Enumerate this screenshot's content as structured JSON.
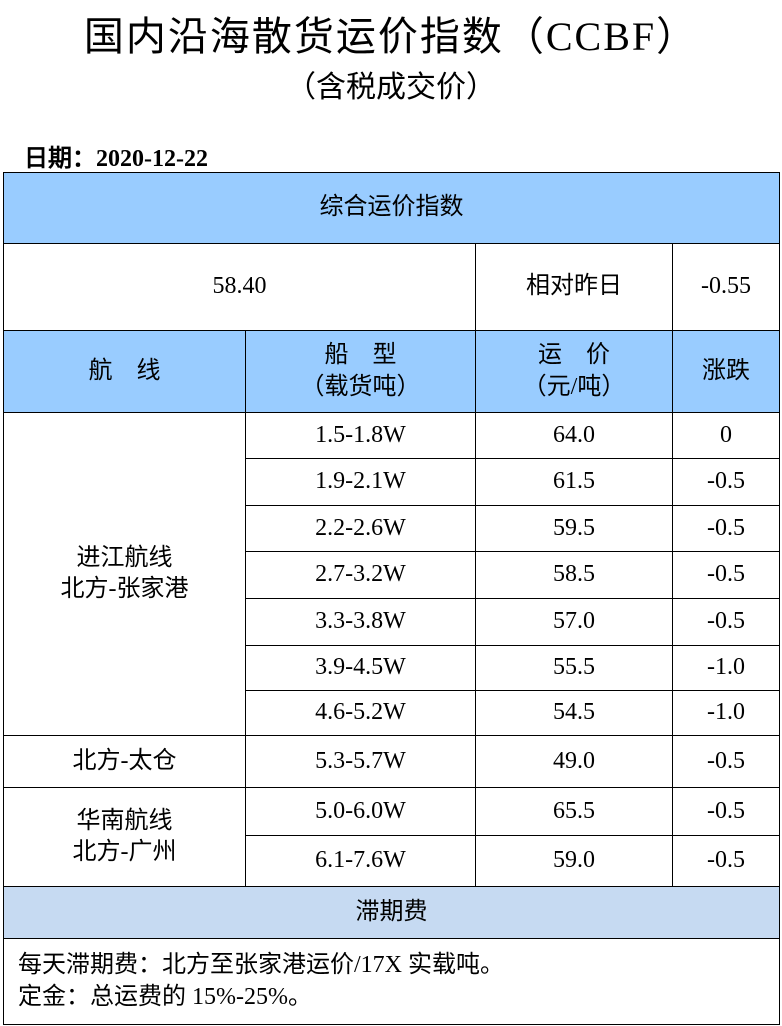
{
  "header": {
    "title": "国内沿海散货运价指数（CCBF）",
    "subtitle": "（含税成交价）",
    "date": "日期：2020-12-22"
  },
  "table": {
    "index_title": "综合运价指数",
    "index_value": "58.40",
    "change_label": "相对昨日",
    "change_value": "-0.55",
    "columns": [
      [
        "航　线"
      ],
      [
        "船　型",
        "（载货吨）"
      ],
      [
        "运　价",
        "（元/吨）"
      ],
      [
        "涨跌"
      ]
    ],
    "groups": [
      {
        "route": [
          "进江航线",
          "北方-张家港"
        ],
        "rows": [
          [
            "1.5-1.8W",
            "64.0",
            "0"
          ],
          [
            "1.9-2.1W",
            "61.5",
            "-0.5"
          ],
          [
            "2.2-2.6W",
            "59.5",
            "-0.5"
          ],
          [
            "2.7-3.2W",
            "58.5",
            "-0.5"
          ],
          [
            "3.3-3.8W",
            "57.0",
            "-0.5"
          ],
          [
            "3.9-4.5W",
            "55.5",
            "-1.0"
          ],
          [
            "4.6-5.2W",
            "54.5",
            "-1.0"
          ]
        ]
      },
      {
        "route": [
          "北方-太仓"
        ],
        "rows": [
          [
            "5.3-5.7W",
            "49.0",
            "-0.5"
          ]
        ]
      },
      {
        "route": [
          "华南航线",
          "北方-广州"
        ],
        "rows": [
          [
            "5.0-6.0W",
            "65.5",
            "-0.5"
          ],
          [
            "6.1-7.6W",
            "59.0",
            "-0.5"
          ]
        ]
      }
    ],
    "demurrage_title": "滞期费",
    "notes": [
      "每天滞期费：北方至张家港运价/17X 实载吨。",
      "定金：总运费的 15%-25%。"
    ]
  }
}
